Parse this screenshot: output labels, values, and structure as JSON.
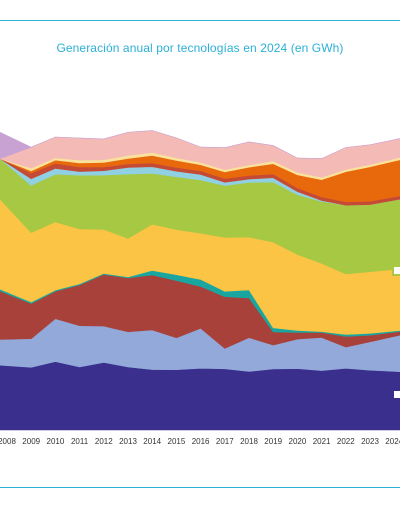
{
  "title": "Generación anual por tecnologías en 2024 (en GWh)",
  "chart_data": {
    "type": "area",
    "stacked": true,
    "title": "Generación anual por tecnologías en 2024 (en GWh)",
    "categories": [
      "2008",
      "2009",
      "2010",
      "2011",
      "2012",
      "2013",
      "2014",
      "2015",
      "2016",
      "2017",
      "2018",
      "2019",
      "2020",
      "2021",
      "2022",
      "2023",
      "2024"
    ],
    "ylim": [
      0,
      300000
    ],
    "grid": false,
    "legend": "none",
    "series": [
      {
        "color": "#3a2f8c",
        "values": [
          58900,
          57000,
          62200,
          57300,
          61500,
          57300,
          54900,
          54800,
          56100,
          55600,
          53200,
          55500,
          55800,
          54000,
          56100,
          54400,
          52900
        ]
      },
      {
        "color": "#93a9da",
        "values": [
          23500,
          26000,
          39000,
          37500,
          33000,
          32000,
          36000,
          29000,
          36400,
          18600,
          30800,
          21700,
          26800,
          30100,
          19300,
          25800,
          33700
        ]
      },
      {
        "color": "#a8413a",
        "values": [
          44000,
          32000,
          25000,
          37000,
          47000,
          49000,
          50000,
          52000,
          38000,
          47000,
          36000,
          12000,
          6000,
          4500,
          9600,
          6000,
          3200
        ]
      },
      {
        "color": "#1aa6a0",
        "values": [
          1600,
          1400,
          1000,
          1000,
          900,
          900,
          4200,
          5400,
          6400,
          4900,
          7400,
          3600,
          1900,
          900,
          1800,
          1700,
          800
        ]
      },
      {
        "color": "#fbc444",
        "values": [
          82000,
          63000,
          62000,
          50000,
          40000,
          35000,
          42000,
          41000,
          42000,
          49000,
          48000,
          78000,
          69000,
          62000,
          55000,
          56000,
          56000
        ]
      },
      {
        "color": "#a6c843",
        "values": [
          36600,
          43000,
          43300,
          48800,
          49300,
          58400,
          46300,
          48000,
          48400,
          47100,
          49700,
          54600,
          54400,
          56300,
          62600,
          61000,
          63600
        ]
      },
      {
        "color": "#8fd0e3",
        "values": [
          0,
          6000,
          5300,
          3300,
          4000,
          6000,
          6000,
          5100,
          5000,
          3000,
          3000,
          4000,
          2800,
          800,
          0,
          0,
          0
        ]
      },
      {
        "color": "#c54a36",
        "values": [
          0,
          5100,
          4600,
          4200,
          3400,
          3300,
          3300,
          3300,
          3300,
          3300,
          3300,
          3300,
          3300,
          3200,
          3100,
          3000,
          3000
        ]
      },
      {
        "color": "#e8690c",
        "values": [
          0,
          2000,
          3000,
          3600,
          4200,
          4900,
          6900,
          6500,
          5600,
          6100,
          7500,
          9400,
          11900,
          15700,
          27300,
          31400,
          32900
        ]
      },
      {
        "color": "#fbe29a",
        "values": [
          0,
          2600,
          2000,
          2700,
          2300,
          2800,
          2600,
          2400,
          2000,
          2000,
          2000,
          2400,
          2300,
          2200,
          2000,
          2000,
          2200
        ]
      },
      {
        "color": "#f4bbb6",
        "values": [
          0,
          19000,
          19000,
          20000,
          19000,
          21000,
          20000,
          18000,
          14000,
          20000,
          21000,
          14000,
          13000,
          17000,
          20000,
          18000,
          17000
        ]
      },
      {
        "color": "#c9a2d4",
        "values": [
          24000,
          0,
          0,
          0,
          0,
          0,
          0,
          0,
          0,
          0,
          0,
          0,
          0,
          0,
          0,
          0,
          0
        ]
      }
    ]
  }
}
